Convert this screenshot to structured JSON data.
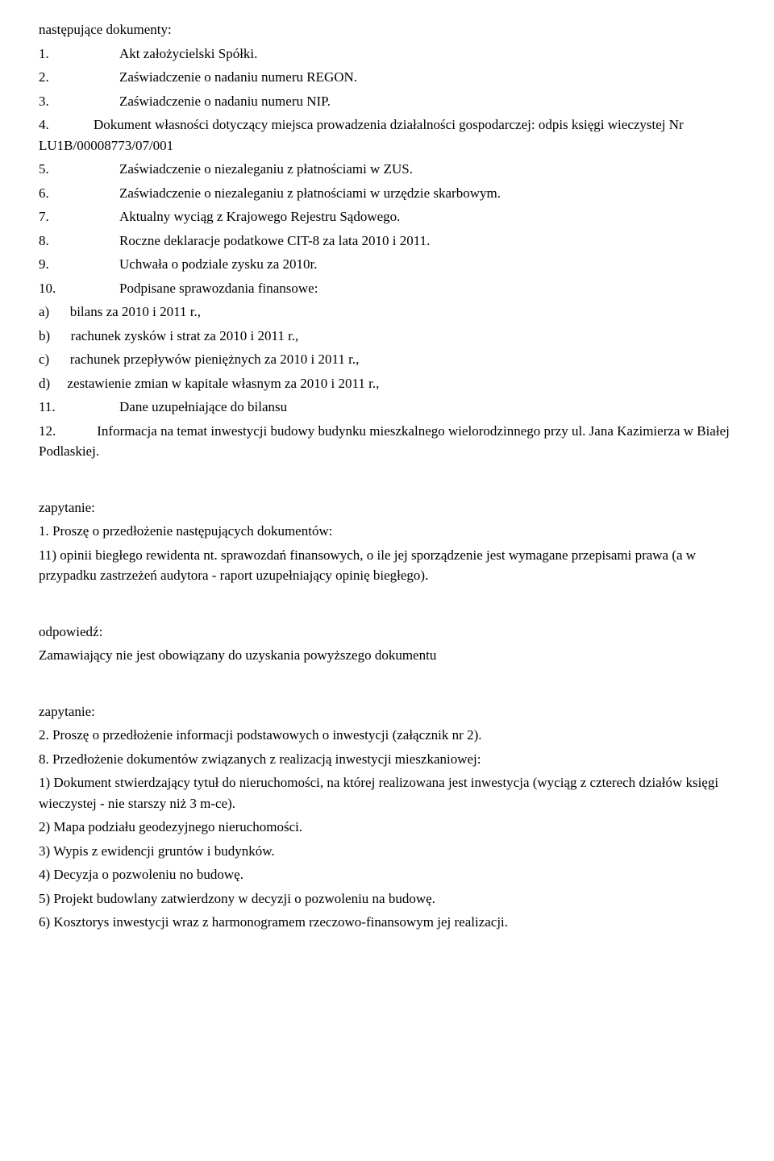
{
  "intro": "następujące dokumenty:",
  "items": [
    {
      "num": "1.",
      "txt": "Akt założycielski Spółki."
    },
    {
      "num": "2.",
      "txt": "Zaświadczenie o nadaniu numeru REGON."
    },
    {
      "num": "3.",
      "txt": "Zaświadczenie o nadaniu numeru NIP."
    }
  ],
  "item4_pre": "4.             Dokument własności dotyczący miejsca prowadzenia działalności gospodarczej: odpis księgi wieczystej Nr LU1B/00008773/07/001",
  "items5to9": [
    {
      "num": "5.",
      "txt": "Zaświadczenie o niezaleganiu z płatnościami w ZUS."
    },
    {
      "num": "6.",
      "txt": "Zaświadczenie o niezaleganiu z płatnościami w urzędzie skarbowym."
    },
    {
      "num": "7.",
      "txt": "Aktualny wyciąg z Krajowego Rejestru Sądowego."
    },
    {
      "num": "8.",
      "txt": "Roczne deklaracje podatkowe CIT-8 za lata 2010 i 2011."
    },
    {
      "num": "9.",
      "txt": "Uchwała o podziale zysku za 2010r."
    },
    {
      "num": "10.",
      "txt": "Podpisane sprawozdania finansowe:"
    }
  ],
  "subs": [
    "a)      bilans za 2010 i 2011 r.,",
    "b)      rachunek zysków i strat za 2010 i 2011 r.,",
    "c)      rachunek przepływów pieniężnych za 2010 i 2011 r.,",
    "d)     zestawienie zmian w kapitale własnym za 2010 i 2011 r.,"
  ],
  "item11": {
    "num": "11.",
    "txt": "Dane uzupełniające do bilansu"
  },
  "item12": "12.            Informacja na temat inwestycji budowy budynku mieszkalnego wielorodzinnego przy ul. Jana Kazimierza w Białej Podlaskiej.",
  "zap1_label": "zapytanie:",
  "zap1_body": "1. Proszę o przedłożenie następujących dokumentów:",
  "zap1_sub": "11) opinii biegłego rewidenta nt. sprawozdań finansowych, o ile jej sporządzenie jest wymagane przepisami prawa (a w przypadku zastrzeżeń audytora - raport uzupełniający opinię biegłego).",
  "odp_label": "odpowiedź:",
  "odp_body": "Zamawiający nie jest obowiązany do uzyskania powyższego dokumentu",
  "zap2_label": "zapytanie:",
  "zap2_l1": "2. Proszę o przedłożenie informacji podstawowych o inwestycji (załącznik nr 2).",
  "zap2_l2": "8. Przedłożenie dokumentów związanych z realizacją inwestycji mieszkaniowej:",
  "zap2_s1": "1) Dokument stwierdzający tytuł do nieruchomości, na której realizowana jest inwestycja (wyciąg z czterech działów księgi wieczystej - nie starszy niż 3 m-ce).",
  "zap2_s2": "2) Mapa podziału geodezyjnego nieruchomości.",
  "zap2_s3": "3) Wypis z ewidencji gruntów i budynków.",
  "zap2_s4": "4) Decyzja o pozwoleniu no budowę.",
  "zap2_s5": "5) Projekt budowlany zatwierdzony w decyzji o pozwoleniu na budowę.",
  "zap2_s6": "6) Kosztorys inwestycji wraz z harmonogramem rzeczowo-finansowym jej realizacji."
}
